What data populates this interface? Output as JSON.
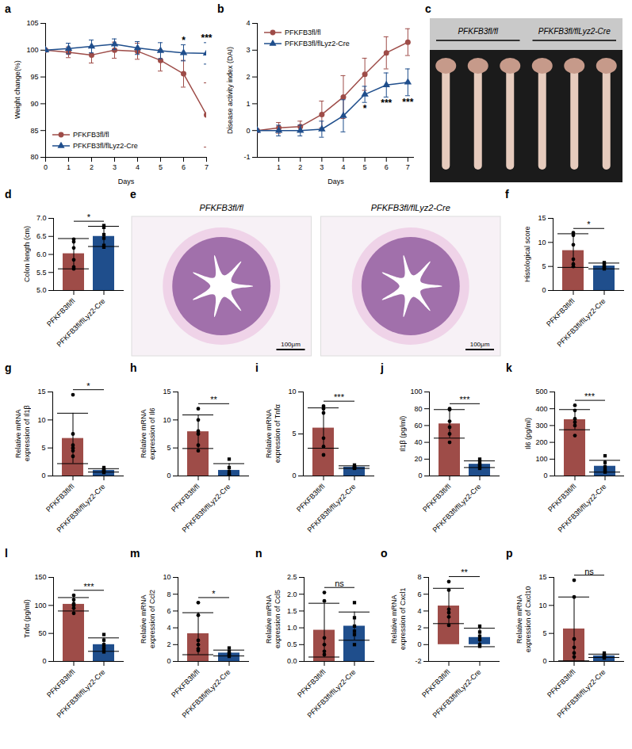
{
  "chart_data": [
    {
      "panel": "a",
      "type": "line",
      "x_label": "Days",
      "y_label": "Weight change(%)",
      "x": [
        0,
        1,
        2,
        3,
        4,
        5,
        6,
        7
      ],
      "xlim": [
        0,
        7
      ],
      "xticks": [
        0,
        1,
        2,
        3,
        4,
        5,
        6,
        7
      ],
      "ylim": [
        80,
        105
      ],
      "yticks": [
        80,
        85,
        90,
        95,
        100,
        105
      ],
      "legend": "lower left",
      "series": [
        {
          "name": "PFKFB3fl/fl",
          "color": "#9e4c48",
          "marker": "circle",
          "values": [
            100,
            99.6,
            99.1,
            100,
            99.8,
            98.1,
            95.6,
            87.9
          ],
          "errors": [
            0,
            1,
            1.5,
            1.5,
            1.5,
            2,
            2.5,
            6
          ]
        },
        {
          "name": "PFKFB3fl/flLyz2-Cre",
          "color": "#1f4e8c",
          "marker": "triangle",
          "values": [
            100,
            100.3,
            100.7,
            101.1,
            100.4,
            99.9,
            99.5,
            99.4
          ],
          "errors": [
            0,
            1,
            1.2,
            1,
            1.2,
            1.5,
            1.5,
            2
          ]
        }
      ],
      "annotations": [
        {
          "x": 6,
          "y": 101.3,
          "text": "*"
        },
        {
          "x": 7,
          "y": 101.6,
          "text": "***"
        }
      ]
    },
    {
      "panel": "b",
      "type": "line",
      "x_label": "Days",
      "y_label": "Disease activity index (DAI)",
      "x": [
        0,
        1,
        2,
        3,
        4,
        5,
        6,
        7
      ],
      "xlim": [
        0,
        7.3
      ],
      "xticks": [
        1,
        2,
        3,
        4,
        5,
        6,
        7
      ],
      "ylim": [
        -1,
        4
      ],
      "yticks": [
        -1,
        0,
        1,
        2,
        3,
        4
      ],
      "legend": "upper left",
      "series": [
        {
          "name": "PFKFB3fl/fl",
          "color": "#9e4c48",
          "marker": "circle",
          "values": [
            0,
            0.1,
            0.15,
            0.6,
            1.25,
            2.1,
            2.9,
            3.3
          ],
          "errors": [
            0,
            0.2,
            0.2,
            0.5,
            0.8,
            0.6,
            0.6,
            0.5
          ]
        },
        {
          "name": "PFKFB3fl/flLyz2-Cre",
          "color": "#1f4e8c",
          "marker": "triangle",
          "values": [
            0,
            0,
            0,
            0.05,
            0.55,
            1.35,
            1.7,
            1.8
          ],
          "errors": [
            0,
            0.2,
            0.2,
            0.3,
            0.6,
            0.3,
            0.45,
            0.5
          ]
        }
      ],
      "annotations": [
        {
          "x": 5,
          "y": 0.95,
          "text": "*"
        },
        {
          "x": 6,
          "y": 1.15,
          "text": "***"
        },
        {
          "x": 7,
          "y": 1.2,
          "text": "***"
        }
      ]
    },
    {
      "panel": "c",
      "type": "image",
      "labels": [
        "PFKFB3fl/fl",
        "PFKFB3fl/flLyz2-Cre"
      ]
    },
    {
      "panel": "d",
      "type": "bar",
      "y_label": "Colon length (cm)",
      "categories": [
        "PFKFB3fl/fl",
        "PFKFB3fl/flLyz2-Cre"
      ],
      "values": [
        6.02,
        6.5
      ],
      "errors": [
        0.42,
        0.28
      ],
      "points": [
        [
          6.35,
          6.42,
          6.18,
          5.85,
          5.65,
          5.6
        ],
        [
          6.75,
          6.8,
          6.55,
          6.45,
          6.2,
          6.25
        ]
      ],
      "colors": [
        "#9e4c48",
        "#1f4e8c"
      ],
      "markers": [
        "circle",
        "square"
      ],
      "ylim": [
        5,
        7
      ],
      "yticks": [
        {
          "value": 5,
          "label": "5.0"
        },
        5.5,
        {
          "value": 6,
          "label": "6.0"
        },
        6.5,
        {
          "value": 7,
          "label": "7.0"
        }
      ],
      "significance": "*"
    },
    {
      "panel": "e",
      "type": "image",
      "labels": [
        "PFKFB3fl/fl",
        "PFKFB3fl/flLyz2-Cre"
      ],
      "scale_label": "100μm"
    },
    {
      "panel": "f",
      "type": "bar",
      "y_label": "Histological score",
      "categories": [
        "PFKFB3fl/fl",
        "PFKFB3fl/flLyz2-Cre"
      ],
      "values": [
        8.3,
        5.1
      ],
      "errors": [
        3.5,
        0.6
      ],
      "points": [
        [
          12,
          11.5,
          9.5,
          6.5,
          5.5,
          5
        ],
        [
          5.8,
          5.6,
          5.2,
          4.9,
          4.7,
          4.5
        ]
      ],
      "colors": [
        "#9e4c48",
        "#1f4e8c"
      ],
      "markers": [
        "circle",
        "square"
      ],
      "ylim": [
        0,
        15
      ],
      "yticks": [
        0,
        5,
        10,
        15
      ],
      "significance": "*"
    },
    {
      "panel": "g",
      "type": "bar",
      "y_label": "Relative mRNA expression of Il1β",
      "categories": [
        "PFKFB3fl/fl",
        "PFKFB3fl/flLyz2-Cre"
      ],
      "values": [
        6.7,
        1.0
      ],
      "errors": [
        4.5,
        0.3
      ],
      "points": [
        [
          14.5,
          7.5,
          5.5,
          5,
          4.5,
          3.5
        ],
        [
          1.5,
          1.2,
          1,
          0.9,
          0.8,
          0.6
        ]
      ],
      "colors": [
        "#9e4c48",
        "#1f4e8c"
      ],
      "markers": [
        "circle",
        "square"
      ],
      "ylim": [
        0,
        15
      ],
      "yticks": [
        0,
        5,
        10,
        15
      ],
      "significance": "*"
    },
    {
      "panel": "h",
      "type": "bar",
      "y_label": "Relative mRNA expression of Il6",
      "categories": [
        "PFKFB3fl/fl",
        "PFKFB3fl/flLyz2-Cre"
      ],
      "values": [
        7.9,
        1.0
      ],
      "errors": [
        3,
        1.2
      ],
      "points": [
        [
          12,
          10,
          8,
          7.5,
          5.5,
          4.5
        ],
        [
          3,
          1.5,
          0.8,
          0.4,
          0.2,
          0.1
        ]
      ],
      "colors": [
        "#9e4c48",
        "#1f4e8c"
      ],
      "markers": [
        "circle",
        "square"
      ],
      "ylim": [
        0,
        15
      ],
      "yticks": [
        0,
        5,
        10,
        15
      ],
      "significance": "**"
    },
    {
      "panel": "i",
      "type": "bar",
      "y_label": "Relative mRNA expression of Tnfα",
      "categories": [
        "PFKFB3fl/fl",
        "PFKFB3fl/flLyz2-Cre"
      ],
      "values": [
        5.7,
        1.05
      ],
      "errors": [
        2.4,
        0.15
      ],
      "points": [
        [
          8.3,
          8,
          7.5,
          4.5,
          3.5,
          2.5
        ],
        [
          1.3,
          1.1,
          1.05,
          1,
          0.95,
          0.9
        ]
      ],
      "colors": [
        "#9e4c48",
        "#1f4e8c"
      ],
      "markers": [
        "circle",
        "square"
      ],
      "ylim": [
        0,
        10
      ],
      "yticks": [
        0,
        5,
        10
      ],
      "significance": "***"
    },
    {
      "panel": "j",
      "type": "bar",
      "y_label": "Il1β (pg/ml)",
      "categories": [
        "PFKFB3fl/fl",
        "PFKFB3fl/flLyz2-Cre"
      ],
      "values": [
        62,
        14
      ],
      "errors": [
        17,
        4
      ],
      "points": [
        [
          80,
          79,
          65,
          58,
          50,
          40
        ],
        [
          20,
          17,
          14,
          13,
          11,
          9
        ]
      ],
      "colors": [
        "#9e4c48",
        "#1f4e8c"
      ],
      "markers": [
        "circle",
        "square"
      ],
      "ylim": [
        0,
        100
      ],
      "yticks": [
        0,
        20,
        40,
        60,
        80,
        100
      ],
      "significance": "***"
    },
    {
      "panel": "k",
      "type": "bar",
      "y_label": "Il6 (pg/ml)",
      "categories": [
        "PFKFB3fl/fl",
        "PFKFB3fl/flLyz2-Cre"
      ],
      "values": [
        335,
        58
      ],
      "errors": [
        60,
        35
      ],
      "points": [
        [
          420,
          390,
          340,
          320,
          300,
          240
        ],
        [
          120,
          80,
          55,
          40,
          30,
          23
        ]
      ],
      "colors": [
        "#9e4c48",
        "#1f4e8c"
      ],
      "markers": [
        "circle",
        "square"
      ],
      "ylim": [
        0,
        500
      ],
      "yticks": [
        0,
        100,
        200,
        300,
        400,
        500
      ],
      "significance": "***"
    },
    {
      "panel": "l",
      "type": "bar",
      "y_label": "Tnfα (pg/ml)",
      "categories": [
        "PFKFB3fl/fl",
        "PFKFB3fl/flLyz2-Cre"
      ],
      "values": [
        102,
        30
      ],
      "errors": [
        12,
        12
      ],
      "points": [
        [
          118,
          110,
          103,
          100,
          95,
          86
        ],
        [
          48,
          38,
          30,
          25,
          22,
          17
        ]
      ],
      "colors": [
        "#9e4c48",
        "#1f4e8c"
      ],
      "markers": [
        "circle",
        "square"
      ],
      "ylim": [
        0,
        150
      ],
      "yticks": [
        0,
        50,
        100,
        150
      ],
      "significance": "***"
    },
    {
      "panel": "m",
      "type": "bar",
      "y_label": "Relative mRNA expression of Ccl2",
      "categories": [
        "PFKFB3fl/fl",
        "PFKFB3fl/flLyz2-Cre"
      ],
      "values": [
        3.3,
        1.0
      ],
      "errors": [
        2.5,
        0.35
      ],
      "points": [
        [
          7,
          5.5,
          2.5,
          2,
          1.5,
          1.3
        ],
        [
          1.6,
          1.2,
          1,
          0.9,
          0.7,
          0.6
        ]
      ],
      "colors": [
        "#9e4c48",
        "#1f4e8c"
      ],
      "markers": [
        "circle",
        "square"
      ],
      "ylim": [
        0,
        10
      ],
      "yticks": [
        0,
        2,
        4,
        6,
        8,
        10
      ],
      "significance": "*"
    },
    {
      "panel": "n",
      "type": "bar",
      "y_label": "Relative mRNA expression of Ccl5",
      "categories": [
        "PFKFB3fl/fl",
        "PFKFB3fl/flLyz2-Cre"
      ],
      "values": [
        0.93,
        1.05
      ],
      "errors": [
        0.8,
        0.42
      ],
      "points": [
        [
          2.05,
          1.8,
          0.7,
          0.5,
          0.3,
          0.2
        ],
        [
          1.75,
          1.3,
          1.05,
          0.9,
          0.8,
          0.5
        ]
      ],
      "colors": [
        "#9e4c48",
        "#1f4e8c"
      ],
      "markers": [
        "circle",
        "square"
      ],
      "ylim": [
        0,
        2.5
      ],
      "yticks": [
        {
          "value": 0,
          "label": "0.0"
        },
        0.5,
        {
          "value": 1,
          "label": "1.0"
        },
        1.5,
        {
          "value": 2,
          "label": "2.0"
        },
        2.5
      ],
      "significance": "ns"
    },
    {
      "panel": "o",
      "type": "bar",
      "y_label": "Relative mRNA expression of Cxcl1",
      "categories": [
        "PFKFB3fl/fl",
        "PFKFB3fl/flLyz2-Cre"
      ],
      "values": [
        4.6,
        0.85
      ],
      "errors": [
        2.1,
        1.1
      ],
      "points": [
        [
          7.5,
          6.5,
          4.2,
          3.8,
          3.3,
          2.3
        ],
        [
          2.2,
          1.5,
          1,
          0.6,
          0,
          -0.2
        ]
      ],
      "colors": [
        "#9e4c48",
        "#1f4e8c"
      ],
      "markers": [
        "circle",
        "square"
      ],
      "ylim": [
        -2,
        8
      ],
      "yticks": [
        -2,
        0,
        2,
        4,
        6,
        8
      ],
      "significance": "**"
    },
    {
      "panel": "p",
      "type": "bar",
      "y_label": "Relative mRNA expression of Cxcl10",
      "categories": [
        "PFKFB3fl/fl",
        "PFKFB3fl/flLyz2-Cre"
      ],
      "values": [
        5.8,
        1.0
      ],
      "errors": [
        5.7,
        0.3
      ],
      "points": [
        [
          14.5,
          11.5,
          4,
          2.5,
          1.5,
          0.8
        ],
        [
          1.5,
          1.2,
          1,
          0.9,
          0.8,
          0.6
        ]
      ],
      "colors": [
        "#9e4c48",
        "#1f4e8c"
      ],
      "markers": [
        "circle",
        "square"
      ],
      "ylim": [
        0,
        15
      ],
      "yticks": [
        0,
        5,
        10,
        15
      ],
      "significance": "ns"
    }
  ]
}
